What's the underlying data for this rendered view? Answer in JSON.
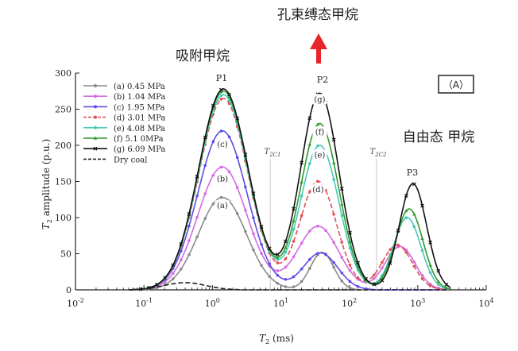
{
  "annotations": {
    "top_label": "孔束缚态甲烷",
    "adsorbed_label": "吸附甲烷",
    "free_label": "自由态 甲烷",
    "panel_label": "（A）",
    "p1": "P1",
    "p2": "P2",
    "p3": "P3",
    "t2c1": "T2C1",
    "t2c2": "T2C2"
  },
  "colors": {
    "arrow": "#e8252a",
    "axis": "#222222",
    "cutoff_line": "#c8c8c8"
  },
  "chart_data": {
    "type": "line",
    "xlabel": "T2 (ms)",
    "ylabel": "T2 amplitude (p.u.)",
    "x_scale": "log",
    "xlim": [
      0.01,
      10000
    ],
    "ylim": [
      0,
      300
    ],
    "x_ticks": [
      {
        "value": 0.01,
        "base": "10",
        "exp": "-2"
      },
      {
        "value": 0.1,
        "base": "10",
        "exp": "-1"
      },
      {
        "value": 1,
        "base": "10",
        "exp": "0"
      },
      {
        "value": 10,
        "base": "10",
        "exp": "1"
      },
      {
        "value": 100,
        "base": "10",
        "exp": "2"
      },
      {
        "value": 1000,
        "base": "10",
        "exp": "3"
      },
      {
        "value": 10000,
        "base": "10",
        "exp": "4"
      }
    ],
    "y_ticks": [
      0,
      50,
      100,
      150,
      200,
      250,
      300
    ],
    "cutoffs": [
      {
        "label": "T2C1",
        "value": 7
      },
      {
        "label": "T2C2",
        "value": 250
      }
    ],
    "legend_position": "top-left",
    "series": [
      {
        "name": "(a) 0.45 MPa",
        "label": "(a)",
        "color": "#8a8a8a",
        "marker": "circle",
        "dashed": false,
        "peaks": [
          {
            "x": 1.4,
            "y": 128,
            "w": 0.35
          },
          {
            "x": 40,
            "y": 52,
            "w": 0.17
          }
        ],
        "label_x": 1.4,
        "label_y": 113
      },
      {
        "name": "(b) 1.04 MPa",
        "label": "(b)",
        "color": "#d36be0",
        "marker": "circle",
        "dashed": false,
        "peaks": [
          {
            "x": 1.4,
            "y": 170,
            "w": 0.36
          },
          {
            "x": 35,
            "y": 88,
            "w": 0.3
          },
          {
            "x": 550,
            "y": 60,
            "w": 0.22
          }
        ],
        "label_x": 1.4,
        "label_y": 150
      },
      {
        "name": "(c) 1.95 MPa",
        "label": "(c)",
        "color": "#5b4de6",
        "marker": "circle",
        "dashed": false,
        "peaks": [
          {
            "x": 1.4,
            "y": 220,
            "w": 0.36
          },
          {
            "x": 38,
            "y": 51,
            "w": 0.25
          }
        ],
        "label_x": 1.4,
        "label_y": 198
      },
      {
        "name": "(d) 3.01 MPa",
        "label": "(d)",
        "color": "#e0505a",
        "marker": "circle",
        "dashed": true,
        "peaks": [
          {
            "x": 1.45,
            "y": 265,
            "w": 0.36
          },
          {
            "x": 35,
            "y": 150,
            "w": 0.27
          },
          {
            "x": 500,
            "y": 62,
            "w": 0.22
          }
        ],
        "label_x": 35,
        "label_y": 135
      },
      {
        "name": "(e) 4.08 MPa",
        "label": "(e)",
        "color": "#46c9bb",
        "marker": "circle",
        "dashed": false,
        "peaks": [
          {
            "x": 1.45,
            "y": 270,
            "w": 0.36
          },
          {
            "x": 37,
            "y": 200,
            "w": 0.28
          },
          {
            "x": 700,
            "y": 100,
            "w": 0.2
          }
        ],
        "label_x": 37,
        "label_y": 183
      },
      {
        "name": "(f) 5.1 0MPa",
        "label": "(f)",
        "color": "#2f9a2a",
        "marker": "triangle",
        "dashed": false,
        "peaks": [
          {
            "x": 1.45,
            "y": 275,
            "w": 0.36
          },
          {
            "x": 37,
            "y": 230,
            "w": 0.28
          },
          {
            "x": 750,
            "y": 112,
            "w": 0.2
          }
        ],
        "label_x": 37,
        "label_y": 215
      },
      {
        "name": "(g) 6.09 MPa",
        "label": "(g)",
        "color": "#111111",
        "marker": "x",
        "dashed": false,
        "peaks": [
          {
            "x": 1.45,
            "y": 278,
            "w": 0.36
          },
          {
            "x": 37,
            "y": 272,
            "w": 0.28
          },
          {
            "x": 850,
            "y": 147,
            "w": 0.2
          }
        ],
        "label_x": 37,
        "label_y": 260
      },
      {
        "name": "Dry coal",
        "label": "",
        "color": "#222222",
        "marker": "none",
        "dashed": true,
        "peaks": [
          {
            "x": 0.4,
            "y": 10,
            "w": 0.3
          }
        ],
        "label_x": null,
        "label_y": null
      }
    ]
  }
}
